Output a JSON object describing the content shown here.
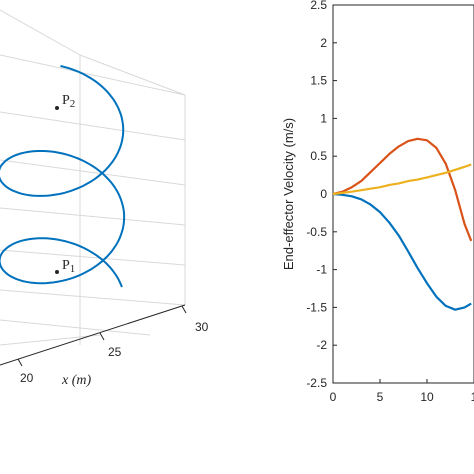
{
  "chart_data": [
    {
      "type": "line",
      "projection": "3d",
      "xlabel": "x (m)",
      "x_ticks": [
        "20",
        "25",
        "30"
      ],
      "points": [
        {
          "label": "P",
          "subscript": "2"
        },
        {
          "label": "P",
          "subscript": "1"
        }
      ],
      "series": [
        {
          "color": "#0072BD",
          "shape": "helix"
        }
      ],
      "grid": true
    },
    {
      "type": "line",
      "ylabel": "End-effector Velocity (m/s)",
      "ylim": [
        -2.5,
        2.5
      ],
      "xlim": [
        0,
        15
      ],
      "y_ticks": [
        "2.5",
        "2",
        "1.5",
        "1",
        "0.5",
        "0",
        "-0.5",
        "-1",
        "-1.5",
        "-2",
        "-2.5"
      ],
      "x_ticks": [
        "0",
        "5",
        "10",
        "1"
      ],
      "grid": false,
      "x": [
        0,
        1,
        2,
        3,
        4,
        5,
        6,
        7,
        8,
        9,
        10,
        11,
        12,
        13,
        14,
        14.7
      ],
      "series": [
        {
          "color": "#0072BD",
          "values": [
            0,
            -0.01,
            -0.03,
            -0.07,
            -0.14,
            -0.24,
            -0.38,
            -0.55,
            -0.76,
            -0.98,
            -1.18,
            -1.36,
            -1.48,
            -1.53,
            -1.5,
            -1.45
          ]
        },
        {
          "color": "#D95319",
          "values": [
            0,
            0.03,
            0.09,
            0.17,
            0.29,
            0.41,
            0.53,
            0.63,
            0.7,
            0.73,
            0.71,
            0.61,
            0.4,
            0.05,
            -0.4,
            -0.62
          ]
        },
        {
          "color": "#EDB120",
          "values": [
            0,
            0.015,
            0.03,
            0.05,
            0.07,
            0.09,
            0.12,
            0.14,
            0.17,
            0.19,
            0.22,
            0.25,
            0.28,
            0.32,
            0.36,
            0.39
          ]
        }
      ]
    }
  ]
}
